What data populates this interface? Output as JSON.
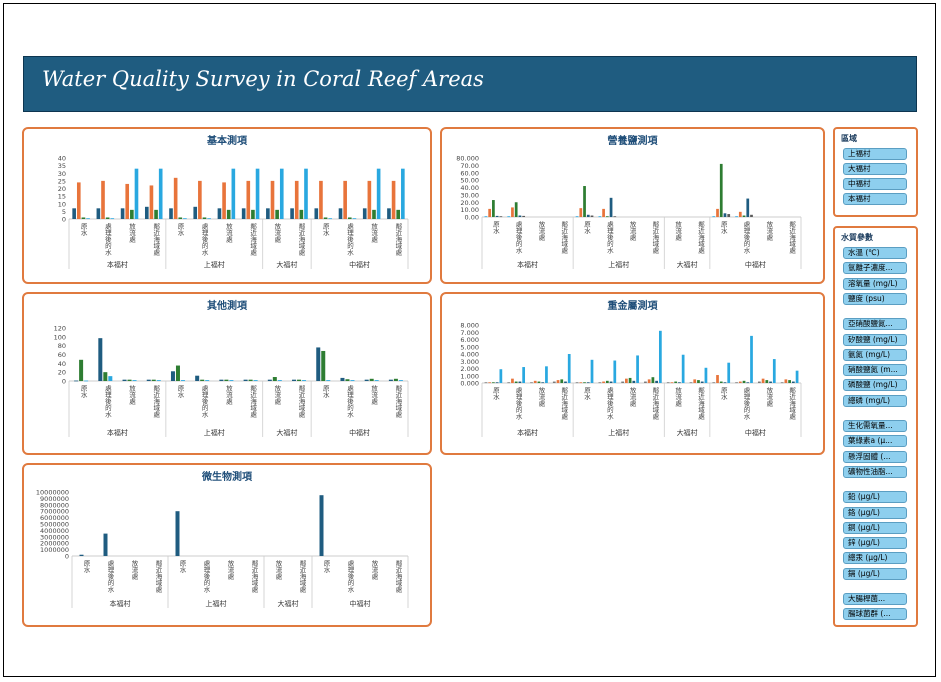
{
  "header": {
    "title": "Water Quality Survey in Coral Reef Areas"
  },
  "colors": {
    "panel_border": "#e07a3f",
    "banner": "#1f5c80",
    "series_navy": "#1f5c80",
    "series_orange": "#e8743b",
    "series_green": "#2e7d32",
    "series_sky": "#29a8e0"
  },
  "slicers": {
    "region": {
      "title": "區域",
      "items": [
        "上福村",
        "大福村",
        "中福村",
        "本福村"
      ]
    },
    "params": {
      "title": "水質參數",
      "groups": [
        [
          "水溫 (℃)",
          "氫離子濃度...",
          "溶氧量 (mg/L)",
          "鹽度 (psu)"
        ],
        [
          "亞硝酸鹽氮...",
          "矽酸鹽 (mg/L)",
          "氨氮 (mg/L)",
          "硝酸鹽氮 (m...",
          "磷酸鹽 (mg/L)",
          "總磷 (mg/L)"
        ],
        [
          "生化需氧量...",
          "葉綠素a (μ...",
          "懸浮固體 (...",
          "礦物性油脂..."
        ],
        [
          "鉛 (μg/L)",
          "鉻 (μg/L)",
          "銅 (μg/L)",
          "鋅 (μg/L)",
          "總汞 (μg/L)",
          "鎘 (μg/L)"
        ],
        [
          "大腸桿菌...",
          "腸球菌群 (..."
        ]
      ]
    }
  },
  "chart_data": [
    {
      "id": "basic",
      "type": "bar",
      "title": "基本測項",
      "ylim": [
        0,
        40
      ],
      "yticks": [
        "0",
        "5",
        "10",
        "15",
        "20",
        "25",
        "30",
        "35",
        "40"
      ],
      "colors": [
        "#1f5c80",
        "#e8743b",
        "#2e7d32",
        "#29a8e0"
      ],
      "groups": [
        {
          "name": "本福村",
          "categories": [
            "原水",
            "處理後的水",
            "放流處",
            "鄰近海域處"
          ]
        },
        {
          "name": "上福村",
          "categories": [
            "原水",
            "處理後的水",
            "放流處",
            "鄰近海域處"
          ]
        },
        {
          "name": "大福村",
          "categories": [
            "放流處",
            "鄰近海域處"
          ]
        },
        {
          "name": "中福村",
          "categories": [
            "原水",
            "處理後的水",
            "放流處",
            "鄰近海域處"
          ]
        }
      ],
      "values": [
        [
          7,
          24,
          1,
          0.5
        ],
        [
          7,
          25,
          1,
          0.5
        ],
        [
          7,
          23,
          6,
          33
        ],
        [
          8,
          22,
          6,
          33
        ],
        [
          7,
          27,
          1,
          0.5
        ],
        [
          8,
          25,
          1,
          0.5
        ],
        [
          7,
          24,
          6,
          33
        ],
        [
          7,
          25,
          6,
          33
        ],
        [
          7,
          25,
          6,
          33
        ],
        [
          7,
          25,
          6,
          33
        ],
        [
          7,
          25,
          1,
          0.5
        ],
        [
          7,
          25,
          1,
          0.5
        ],
        [
          7,
          25,
          6,
          33
        ],
        [
          7,
          25,
          6,
          33
        ]
      ]
    },
    {
      "id": "nutrients",
      "type": "bar",
      "title": "營養鹽測項",
      "ylim": [
        0,
        80
      ],
      "yticks": [
        "0.00",
        "10.00",
        "20.00",
        "30.00",
        "40.00",
        "50.00",
        "60.00",
        "70.00",
        "80.000"
      ],
      "colors": [
        "#29a8e0",
        "#e8743b",
        "#2e7d32",
        "#1f5c80",
        "#5a5a5a"
      ],
      "groups": [
        {
          "name": "本福村",
          "categories": [
            "原水",
            "處理後的水",
            "放流處",
            "鄰近海域處"
          ]
        },
        {
          "name": "上福村",
          "categories": [
            "原水",
            "處理後的水",
            "放流處",
            "鄰近海域處"
          ]
        },
        {
          "name": "大福村",
          "categories": [
            "放流處",
            "鄰近海域處"
          ]
        },
        {
          "name": "中福村",
          "categories": [
            "原水",
            "處理後的水",
            "放流處",
            "鄰近海域處"
          ]
        }
      ],
      "values": [
        [
          1,
          11,
          23,
          1.5,
          1
        ],
        [
          1,
          13,
          20,
          2,
          1.5
        ],
        [
          0,
          0,
          0,
          0,
          0
        ],
        [
          0,
          0,
          0,
          0,
          0
        ],
        [
          1,
          12,
          42,
          3,
          2
        ],
        [
          1,
          11,
          1,
          26,
          1
        ],
        [
          0,
          0,
          0,
          0,
          0
        ],
        [
          0,
          0,
          0,
          0,
          0
        ],
        [
          0,
          0,
          0,
          0,
          0
        ],
        [
          0,
          0,
          0,
          0,
          0
        ],
        [
          1,
          11,
          72,
          5,
          4
        ],
        [
          1,
          7,
          2,
          25,
          3
        ],
        [
          0,
          0,
          0,
          0,
          0
        ],
        [
          0,
          0,
          0,
          0,
          0
        ]
      ]
    },
    {
      "id": "other",
      "type": "bar",
      "title": "其他測項",
      "ylim": [
        0,
        120
      ],
      "yticks": [
        "0",
        "20",
        "40",
        "60",
        "80",
        "100",
        "120"
      ],
      "colors": [
        "#1f5c80",
        "#2e7d32",
        "#29a8e0"
      ],
      "groups": [
        {
          "name": "本福村",
          "categories": [
            "原水",
            "處理後的水",
            "放流處",
            "鄰近海域處"
          ]
        },
        {
          "name": "上福村",
          "categories": [
            "原水",
            "處理後的水",
            "放流處",
            "鄰近海域處"
          ]
        },
        {
          "name": "大福村",
          "categories": [
            "放流處",
            "鄰近海域處"
          ]
        },
        {
          "name": "中福村",
          "categories": [
            "原水",
            "處理後的水",
            "放流處",
            "鄰近海域處"
          ]
        }
      ],
      "values": [
        [
          1,
          48,
          1
        ],
        [
          97,
          20,
          11
        ],
        [
          3,
          3,
          2
        ],
        [
          3,
          3,
          2
        ],
        [
          22,
          35,
          2
        ],
        [
          12,
          3,
          2
        ],
        [
          3,
          3,
          2
        ],
        [
          3,
          3,
          2
        ],
        [
          3,
          9,
          2
        ],
        [
          3,
          3,
          2
        ],
        [
          76,
          68,
          2
        ],
        [
          7,
          4,
          2
        ],
        [
          3,
          5,
          2
        ],
        [
          3,
          5,
          2
        ]
      ]
    },
    {
      "id": "heavy-metals",
      "type": "bar",
      "title": "重金屬測項",
      "ylim": [
        0,
        8
      ],
      "yticks": [
        "0.000",
        "1.000",
        "2.000",
        "3.000",
        "4.000",
        "5.000",
        "6.000",
        "7.000",
        "8.000"
      ],
      "colors": [
        "#7a7a7a",
        "#e8743b",
        "#2e7d32",
        "#1f5c80",
        "#29a8e0"
      ],
      "groups": [
        {
          "name": "本福村",
          "categories": [
            "原水",
            "處理後的水",
            "放流處",
            "鄰近海域處"
          ]
        },
        {
          "name": "上福村",
          "categories": [
            "原水",
            "處理後的水",
            "放流處",
            "鄰近海域處"
          ]
        },
        {
          "name": "大福村",
          "categories": [
            "放流處",
            "鄰近海域處"
          ]
        },
        {
          "name": "中福村",
          "categories": [
            "原水",
            "處理後的水",
            "放流處",
            "鄰近海域處"
          ]
        }
      ],
      "values": [
        [
          0.1,
          0.1,
          0.1,
          0.1,
          1.9
        ],
        [
          0.1,
          0.6,
          0.2,
          0.2,
          2.2
        ],
        [
          0.1,
          0.3,
          0.2,
          0.1,
          2.3
        ],
        [
          0.2,
          0.4,
          0.5,
          0.2,
          4.0
        ],
        [
          0.1,
          0.1,
          0.1,
          0.1,
          3.2
        ],
        [
          0.1,
          0.2,
          0.3,
          0.2,
          3.1
        ],
        [
          0.2,
          0.6,
          0.7,
          0.3,
          3.8
        ],
        [
          0.2,
          0.5,
          0.8,
          0.3,
          7.2
        ],
        [
          0.1,
          0.1,
          0.2,
          0.1,
          3.9
        ],
        [
          0.1,
          0.5,
          0.4,
          0.2,
          2.1
        ],
        [
          0.1,
          1.1,
          0.2,
          0.1,
          2.8
        ],
        [
          0.1,
          0.2,
          0.3,
          0.1,
          6.5
        ],
        [
          0.2,
          0.6,
          0.4,
          0.2,
          3.3
        ],
        [
          0.1,
          0.5,
          0.4,
          0.2,
          1.7
        ]
      ]
    },
    {
      "id": "microbes",
      "type": "bar",
      "title": "微生物測項",
      "ylim": [
        0,
        10000000
      ],
      "yticks": [
        "0",
        "1000000",
        "2000000",
        "3000000",
        "4000000",
        "5000000",
        "6000000",
        "7000000",
        "8000000",
        "9000000",
        "10000000"
      ],
      "colors": [
        "#1f5c80",
        "#7a7a7a"
      ],
      "groups": [
        {
          "name": "本福村",
          "categories": [
            "原水",
            "處理後的水",
            "放流處",
            "鄰近海域處"
          ]
        },
        {
          "name": "上福村",
          "categories": [
            "原水",
            "處理後的水",
            "放流處",
            "鄰近海域處"
          ]
        },
        {
          "name": "大福村",
          "categories": [
            "放流處",
            "鄰近海域處"
          ]
        },
        {
          "name": "中福村",
          "categories": [
            "原水",
            "處理後的水",
            "放流處",
            "鄰近海域處"
          ]
        }
      ],
      "values": [
        [
          200000,
          0
        ],
        [
          3500000,
          0
        ],
        [
          0,
          0
        ],
        [
          0,
          0
        ],
        [
          7000000,
          0
        ],
        [
          0,
          0
        ],
        [
          0,
          0
        ],
        [
          0,
          0
        ],
        [
          0,
          0
        ],
        [
          0,
          0
        ],
        [
          9500000,
          0
        ],
        [
          0,
          0
        ],
        [
          0,
          0
        ],
        [
          0,
          0
        ]
      ]
    }
  ]
}
